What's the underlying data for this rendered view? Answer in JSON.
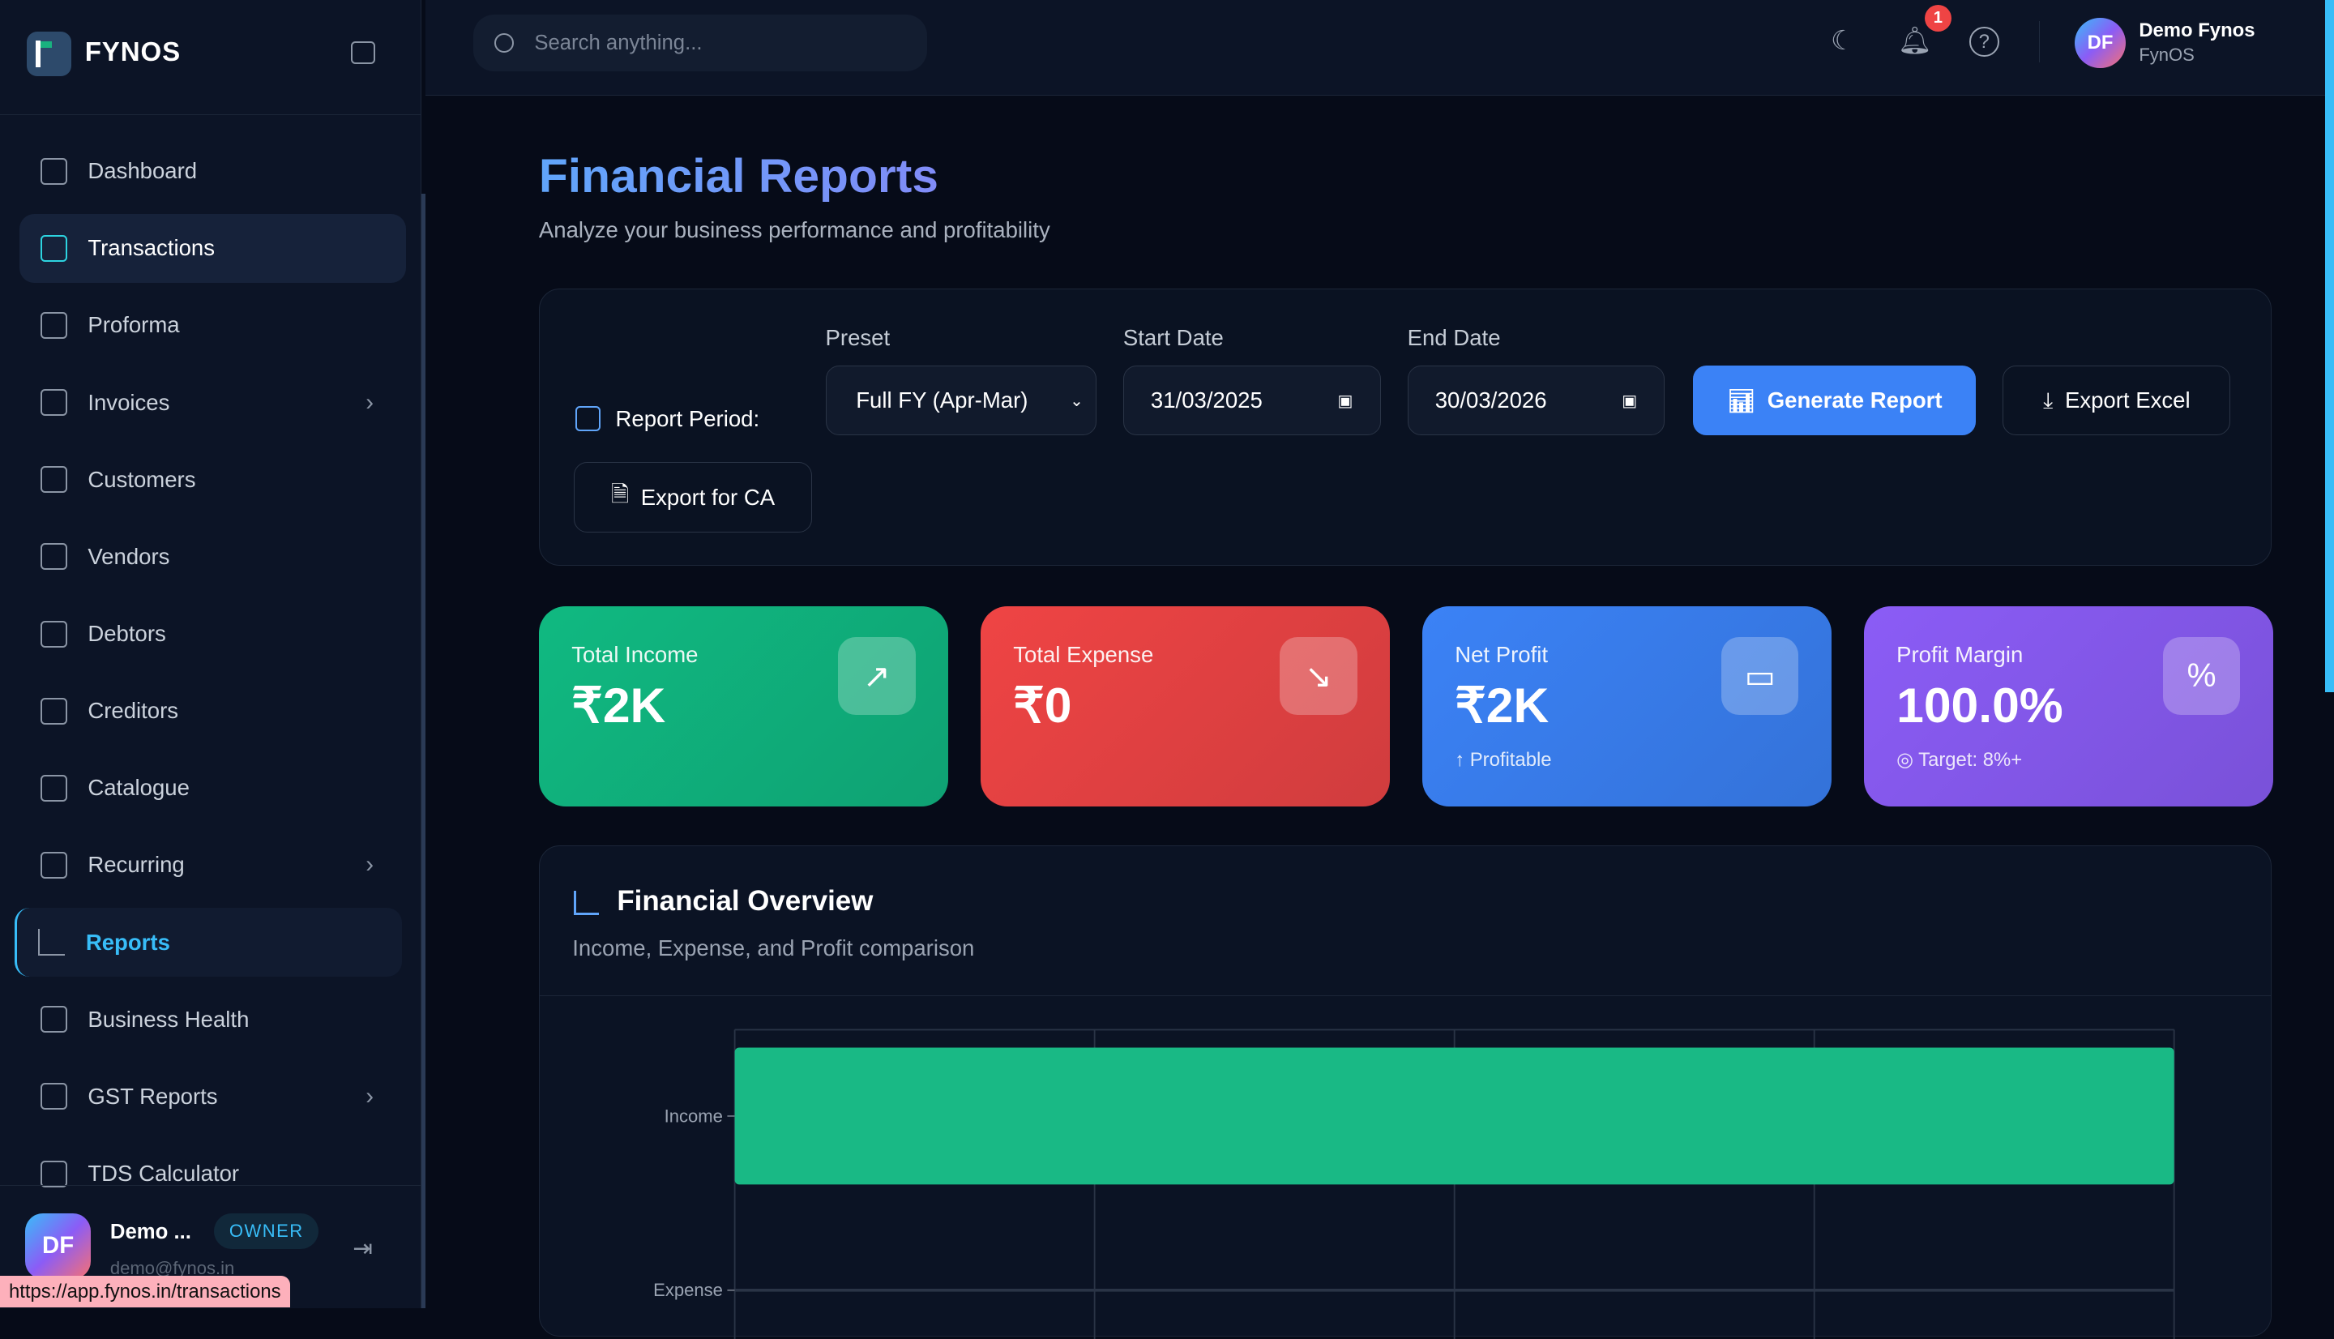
{
  "sidebar": {
    "brand": "FYNOS",
    "items": [
      {
        "label": "Dashboard"
      },
      {
        "label": "Transactions"
      },
      {
        "label": "Proforma"
      },
      {
        "label": "Invoices",
        "chevron": true
      },
      {
        "label": "Customers"
      },
      {
        "label": "Vendors"
      },
      {
        "label": "Debtors"
      },
      {
        "label": "Creditors"
      },
      {
        "label": "Catalogue"
      },
      {
        "label": "Recurring",
        "chevron": true
      },
      {
        "label": "Reports"
      },
      {
        "label": "Business Health"
      },
      {
        "label": "GST Reports",
        "chevron": true
      },
      {
        "label": "TDS Calculator"
      }
    ],
    "user": {
      "initials": "DF",
      "name": "Demo ...",
      "role": "OWNER",
      "email": "demo@fynos.in"
    }
  },
  "status_url": "https://app.fynos.in/transactions",
  "header": {
    "search_placeholder": "Search anything...",
    "notification_count": "1",
    "user_initials": "DF",
    "user_name": "Demo Fynos",
    "org": "FynOS"
  },
  "page": {
    "title": "Financial Reports",
    "subtitle": "Analyze your business performance and profitability"
  },
  "filters": {
    "report_period_label": "Report Period:",
    "preset_label": "Preset",
    "preset_value": "Full FY (Apr-Mar)",
    "start_label": "Start Date",
    "start_value": "31/03/2025",
    "end_label": "End Date",
    "end_value": "30/03/2026",
    "generate": "Generate Report",
    "export_excel": "Export Excel",
    "export_ca": "Export for CA"
  },
  "stats": [
    {
      "label": "Total Income",
      "value": "₹2K",
      "icon": "trending-up-icon",
      "color": "#10b981"
    },
    {
      "label": "Total Expense",
      "value": "₹0",
      "icon": "trending-down-icon",
      "color": "#ef4444"
    },
    {
      "label": "Net Profit",
      "value": "₹2K",
      "sub": "↑ Profitable",
      "icon": "wallet-icon",
      "color": "#3b82f6"
    },
    {
      "label": "Profit Margin",
      "value": "100.0%",
      "sub": "◎ Target: 8%+",
      "icon": "percent-icon",
      "color": "#8b5cf6"
    }
  ],
  "overview": {
    "title": "Financial Overview",
    "subtitle": "Income, Expense, and Profit comparison"
  },
  "chart_data": {
    "type": "bar",
    "orientation": "horizontal",
    "categories": [
      "Income",
      "Expense"
    ],
    "values": [
      2000,
      0
    ],
    "bar_color": "#19b985",
    "grid": true
  }
}
